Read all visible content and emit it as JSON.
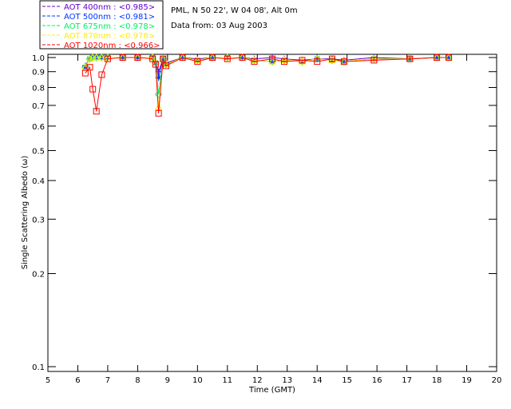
{
  "chart_data": {
    "type": "line",
    "title": "PML, N 50 22', W 04 08', Alt 0m",
    "subtitle": "Data from: 03 Aug 2003",
    "xlabel": "Time (GMT)",
    "ylabel": "Single Scattering Albedo (ω)",
    "xlim": [
      5,
      20
    ],
    "ylim": [
      0.1,
      1.0
    ],
    "yscale": "log",
    "xticks": [
      "5",
      "6",
      "7",
      "8",
      "9",
      "10",
      "11",
      "12",
      "13",
      "14",
      "15",
      "16",
      "17",
      "18",
      "19",
      "20"
    ],
    "yticks": [
      {
        "v": 1.0,
        "l": "1.0"
      },
      {
        "v": 0.9,
        "l": "0.9"
      },
      {
        "v": 0.8,
        "l": "0.8"
      },
      {
        "v": 0.7,
        "l": "0.7"
      },
      {
        "v": 0.6,
        "l": "0.6"
      },
      {
        "v": 0.5,
        "l": "0.5"
      },
      {
        "v": 0.4,
        "l": "0.4"
      },
      {
        "v": 0.3,
        "l": "0.3"
      },
      {
        "v": 0.2,
        "l": "0.2"
      },
      {
        "v": 0.1,
        "l": "0.1"
      }
    ],
    "x": [
      6.25,
      6.4,
      6.5,
      6.62,
      6.8,
      7.0,
      7.5,
      8.0,
      8.5,
      8.6,
      8.7,
      8.85,
      8.95,
      9.5,
      10.0,
      10.5,
      11.0,
      11.5,
      11.9,
      12.5,
      12.9,
      13.5,
      14.0,
      14.5,
      14.9,
      15.9,
      17.1,
      18.0,
      18.4
    ],
    "series": [
      {
        "name": "AOT  400nm : <0.985>",
        "color": "#6600cc",
        "marker": "plus",
        "values": [
          0.94,
          0.99,
          1.0,
          1.0,
          1.0,
          1.0,
          1.0,
          1.0,
          1.0,
          0.97,
          0.9,
          0.99,
          0.96,
          1.0,
          0.99,
          1.0,
          1.0,
          1.0,
          0.99,
          1.0,
          0.99,
          0.98,
          0.99,
          0.99,
          0.98,
          1.0,
          0.99,
          1.0,
          1.0
        ]
      },
      {
        "name": "AOT  500nm : <0.981>",
        "color": "#0033ff",
        "marker": "asterisk",
        "values": [
          0.93,
          0.99,
          1.0,
          1.0,
          1.0,
          1.0,
          1.0,
          1.0,
          1.0,
          0.96,
          0.86,
          0.99,
          0.95,
          1.0,
          0.98,
          1.0,
          1.0,
          1.0,
          0.98,
          0.97,
          0.98,
          0.97,
          0.99,
          0.98,
          0.97,
          0.99,
          0.99,
          1.0,
          1.0
        ]
      },
      {
        "name": "AOT  675nm : <0.978>",
        "color": "#00ee66",
        "marker": "diamond",
        "values": [
          0.93,
          0.99,
          1.0,
          1.0,
          1.0,
          1.0,
          1.0,
          1.0,
          1.0,
          0.96,
          0.76,
          0.99,
          0.95,
          1.0,
          0.98,
          1.0,
          1.0,
          1.0,
          0.98,
          0.97,
          0.98,
          0.97,
          0.99,
          0.98,
          0.97,
          0.99,
          0.99,
          1.0,
          1.0
        ]
      },
      {
        "name": "AOT  870nm : <0.978>",
        "color": "#ffee00",
        "marker": "triangle",
        "values": [
          0.93,
          0.99,
          1.0,
          1.0,
          1.0,
          1.0,
          1.0,
          1.0,
          1.0,
          0.96,
          0.69,
          0.99,
          0.95,
          1.0,
          0.98,
          1.0,
          1.0,
          1.0,
          0.98,
          0.97,
          0.98,
          0.97,
          0.99,
          0.98,
          0.97,
          0.99,
          0.99,
          1.0,
          1.0
        ]
      },
      {
        "name": "AOT 1020nm : <0.966>",
        "color": "#ff0000",
        "marker": "square",
        "values": [
          0.89,
          0.93,
          0.79,
          0.67,
          0.88,
          0.99,
          1.0,
          1.0,
          0.99,
          0.95,
          0.66,
          0.99,
          0.94,
          1.0,
          0.97,
          1.0,
          0.99,
          1.0,
          0.97,
          0.99,
          0.97,
          0.98,
          0.97,
          0.99,
          0.97,
          0.98,
          0.99,
          1.0,
          1.0
        ]
      }
    ]
  }
}
